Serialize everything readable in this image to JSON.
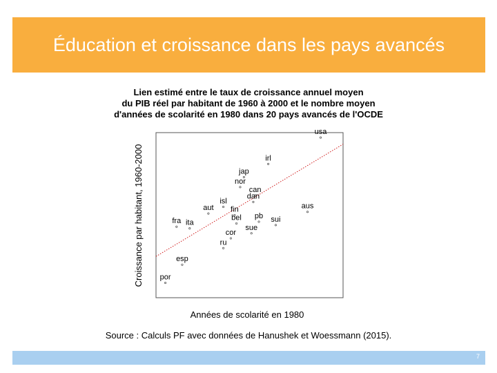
{
  "slide": {
    "title": "Éducation et croissance dans les pays avancés",
    "source": "Source : Calculs PF avec données de Hanushek et Woessmann (2015).",
    "page_number": "7"
  },
  "colors": {
    "title_bar": "#F9AE3E",
    "footer_bar": "#A9CFF0",
    "fit_line": "#D01818"
  },
  "chart_data": {
    "type": "scatter",
    "title": [
      "Lien estimé entre le taux de croissance annuel moyen",
      "du PIB réel par habitant de 1960 à 2000 et le nombre moyen",
      "d'années  de scolarité en 1980 dans 20 pays avancés de l'OCDE"
    ],
    "xlabel": "Années de scolarité en 1980",
    "ylabel": "Croissance par habitant, 1960-2000",
    "xlim": [
      0,
      100
    ],
    "ylim": [
      0,
      100
    ],
    "axis_ticks": "none",
    "grid": false,
    "fit_line": {
      "type": "linear",
      "style": "dotted",
      "from": [
        0,
        25
      ],
      "to": [
        100,
        93
      ]
    },
    "points": [
      {
        "label": "usa",
        "x": 88,
        "y": 97
      },
      {
        "label": "irl",
        "x": 60,
        "y": 81
      },
      {
        "label": "jap",
        "x": 47,
        "y": 73
      },
      {
        "label": "nor",
        "x": 45,
        "y": 67
      },
      {
        "label": "can",
        "x": 53,
        "y": 62
      },
      {
        "label": "dan",
        "x": 52,
        "y": 58
      },
      {
        "label": "isl",
        "x": 36,
        "y": 55
      },
      {
        "label": "aut",
        "x": 28,
        "y": 51
      },
      {
        "label": "fin",
        "x": 42,
        "y": 50
      },
      {
        "label": "pb",
        "x": 55,
        "y": 46
      },
      {
        "label": "bel",
        "x": 43,
        "y": 45
      },
      {
        "label": "aus",
        "x": 81,
        "y": 52
      },
      {
        "label": "fra",
        "x": 11,
        "y": 43
      },
      {
        "label": "ita",
        "x": 18,
        "y": 42
      },
      {
        "label": "sui",
        "x": 64,
        "y": 44
      },
      {
        "label": "cor",
        "x": 40,
        "y": 36
      },
      {
        "label": "sue",
        "x": 51,
        "y": 39
      },
      {
        "label": "ru",
        "x": 36,
        "y": 30
      },
      {
        "label": "esp",
        "x": 14,
        "y": 20
      },
      {
        "label": "por",
        "x": 5,
        "y": 9
      }
    ]
  }
}
